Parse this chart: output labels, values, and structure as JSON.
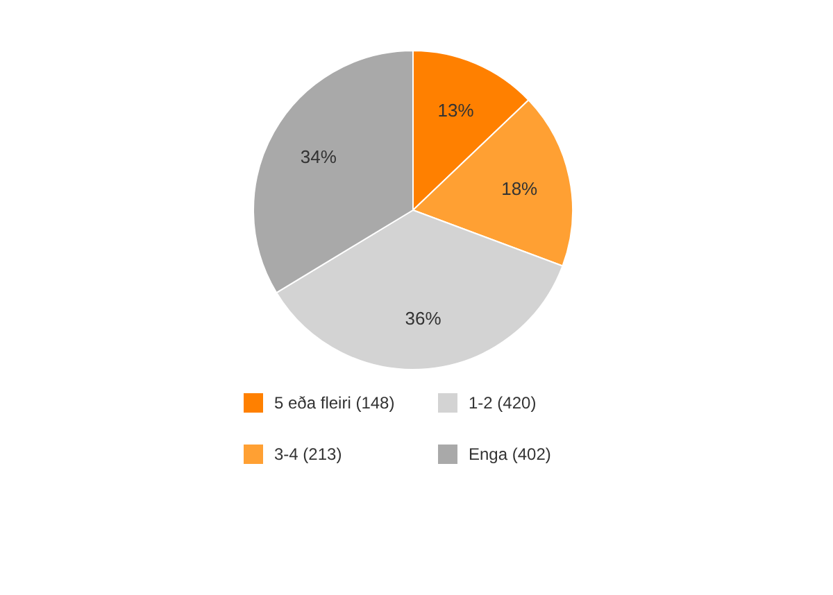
{
  "chart_data": {
    "type": "pie",
    "categories": [
      "5 eða fleiri (148)",
      "3-4 (213)",
      "1-2 (420)",
      "Enga (402)"
    ],
    "values": [
      13,
      18,
      36,
      34
    ],
    "colors": [
      "#ff8000",
      "#ffa033",
      "#d3d3d3",
      "#a9a9a9"
    ],
    "value_labels": [
      "13%",
      "18%",
      "36%",
      "34%"
    ],
    "legend": "bottom"
  }
}
